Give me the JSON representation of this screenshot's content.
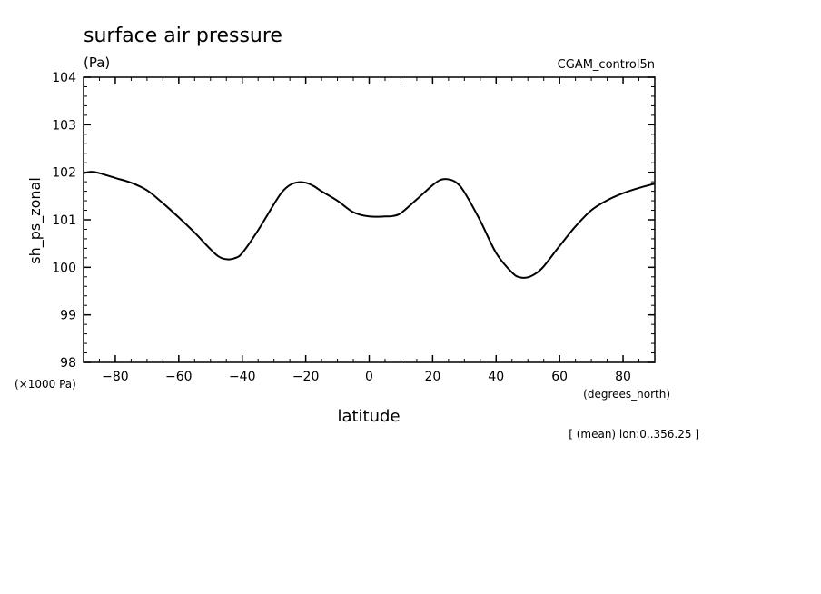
{
  "chart_data": {
    "type": "line",
    "title": "surface air pressure",
    "units": "(Pa)",
    "dataset": "CGAM_control5n",
    "ylabel": "sh_ps_zonal",
    "yscale_label": "(×1000 Pa)",
    "xlabel": "latitude",
    "xunits": "(degrees_north)",
    "note": "[ (mean) lon:0..356.25 ]",
    "xlim": [
      -90,
      90
    ],
    "ylim": [
      98,
      104
    ],
    "xticks": [
      -80,
      -60,
      -40,
      -20,
      0,
      20,
      40,
      60,
      80
    ],
    "yticks": [
      98,
      99,
      100,
      101,
      102,
      103,
      104
    ],
    "grid": false,
    "line_color": "#000000",
    "series": [
      {
        "x": [
          -90,
          -87.5,
          -85,
          -80,
          -75,
          -70,
          -65,
          -60,
          -55,
          -50,
          -47.5,
          -45,
          -42.5,
          -40,
          -35,
          -30,
          -27.5,
          -25,
          -22.5,
          -20,
          -17.5,
          -15,
          -10,
          -5,
          0,
          5,
          7.5,
          10,
          15,
          20,
          22.5,
          25,
          27.5,
          30,
          35,
          40,
          45,
          47.5,
          50,
          52.5,
          55,
          60,
          65,
          70,
          75,
          80,
          85,
          90
        ],
        "y": [
          101.98,
          102.01,
          101.98,
          101.88,
          101.78,
          101.62,
          101.35,
          101.05,
          100.73,
          100.38,
          100.23,
          100.17,
          100.19,
          100.3,
          100.78,
          101.33,
          101.58,
          101.73,
          101.79,
          101.78,
          101.71,
          101.6,
          101.4,
          101.16,
          101.07,
          101.07,
          101.08,
          101.14,
          101.43,
          101.73,
          101.84,
          101.85,
          101.78,
          101.58,
          100.98,
          100.3,
          99.89,
          99.79,
          99.79,
          99.87,
          100.02,
          100.45,
          100.86,
          101.2,
          101.41,
          101.56,
          101.67,
          101.76
        ]
      }
    ]
  }
}
